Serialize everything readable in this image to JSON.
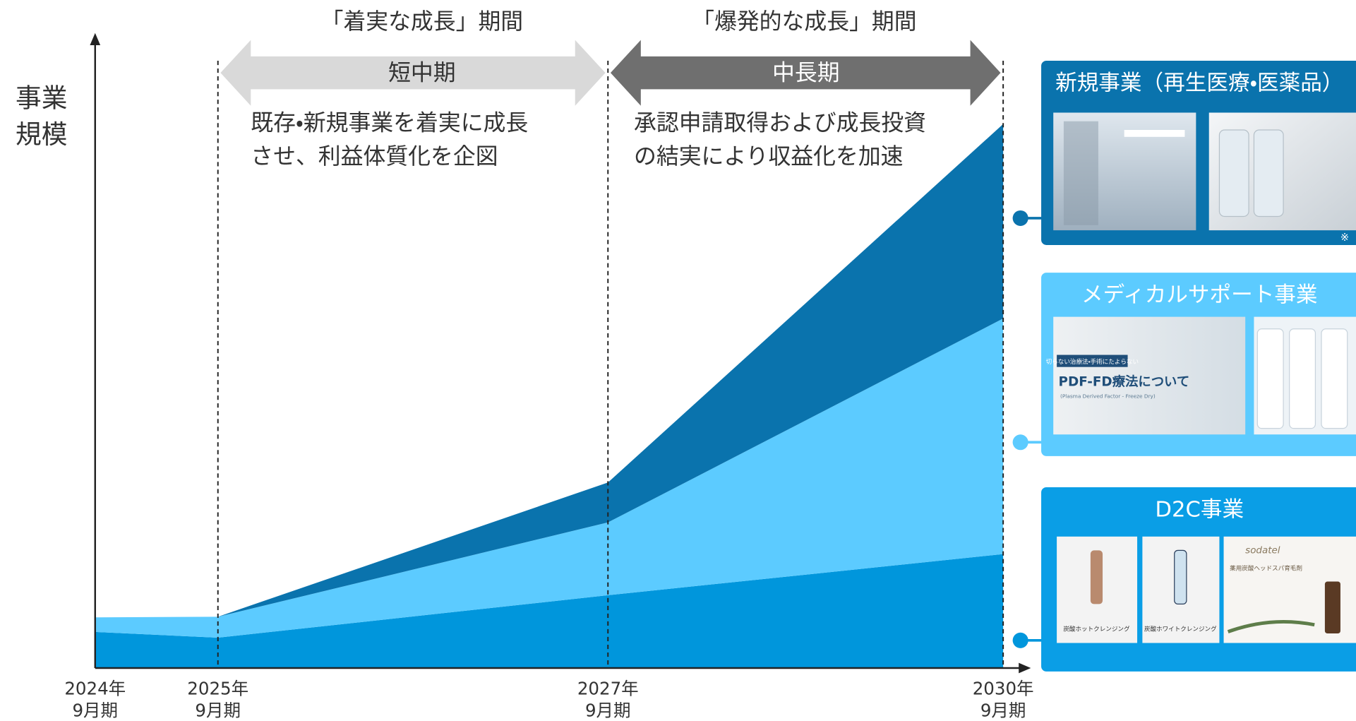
{
  "chart_data": {
    "type": "area",
    "y_label": [
      "事業",
      "規模"
    ],
    "categories": [
      [
        "2024年",
        "9月期"
      ],
      [
        "2025年",
        "9月期"
      ],
      [
        "2027年",
        "9月期"
      ],
      [
        "2030年",
        "9月期"
      ]
    ],
    "ylim": [
      0,
      100
    ],
    "stacked": true,
    "series": [
      {
        "name": "D2C事業",
        "color": "#0096dc",
        "values": [
          5.7,
          4.8,
          11.5,
          18.0
        ]
      },
      {
        "name": "メディカルサポート事業",
        "color": "#5ccbff",
        "values": [
          2.3,
          3.3,
          11.5,
          37.2
        ]
      },
      {
        "name": "新規事業（再生医療・医薬品）",
        "color": "#0a73ad",
        "values": [
          0,
          0,
          6.3,
          30.7
        ]
      }
    ],
    "phases": [
      {
        "title": "「着実な成長」期間",
        "period": "短中期",
        "description": [
          "既存・新規事業を着実に成長",
          "させ、利益体質化を企図"
        ]
      },
      {
        "title": "「爆発的な成長」期間",
        "period": "中長期",
        "description": [
          "承認申請取得および成長投資",
          "の結実により収益化を加速"
        ]
      }
    ]
  },
  "panels": {
    "new_note": "※",
    "medical": [
      "切らない治療法・手術にたよらない",
      "PDF-FD療法について",
      "(Plasma Derived Factor - Freeze Dry)"
    ],
    "d2c": [
      "炭酸ホットクレンジング",
      "炭酸ホワイトクレンジング",
      "sodatel",
      "薬用炭酸ヘッドスパ育毛剤"
    ]
  }
}
